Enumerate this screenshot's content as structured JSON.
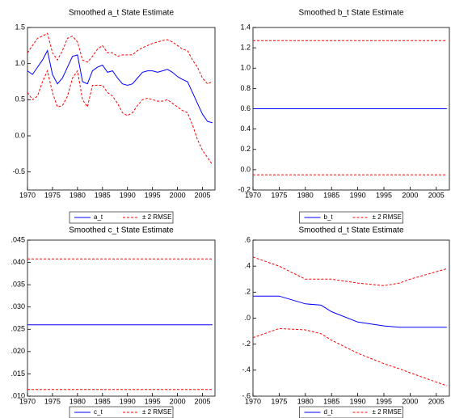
{
  "chart_data": [
    {
      "type": "line",
      "title": "Smoothed a_t State Estimate",
      "x": [
        1970,
        1971,
        1972,
        1973,
        1974,
        1975,
        1976,
        1977,
        1978,
        1979,
        1980,
        1981,
        1982,
        1983,
        1984,
        1985,
        1986,
        1987,
        1988,
        1989,
        1990,
        1991,
        1992,
        1993,
        1994,
        1995,
        1996,
        1997,
        1998,
        1999,
        2000,
        2001,
        2002,
        2003,
        2004,
        2005,
        2006,
        2007
      ],
      "series": [
        {
          "name": "a_t",
          "color": "#0000ff",
          "dashed": false,
          "values": [
            0.9,
            0.85,
            0.95,
            1.05,
            1.18,
            0.85,
            0.72,
            0.8,
            0.95,
            1.1,
            1.12,
            0.75,
            0.72,
            0.9,
            0.95,
            0.98,
            0.88,
            0.9,
            0.8,
            0.72,
            0.7,
            0.72,
            0.8,
            0.88,
            0.9,
            0.9,
            0.88,
            0.9,
            0.92,
            0.88,
            0.82,
            0.78,
            0.75,
            0.6,
            0.45,
            0.3,
            0.2,
            0.18
          ]
        },
        {
          "name": "± 2 RMSE",
          "color": "#ff0000",
          "dashed": true,
          "values": [
            1.15,
            1.25,
            1.35,
            1.38,
            1.42,
            1.15,
            1.05,
            1.18,
            1.35,
            1.38,
            1.3,
            1.05,
            1.02,
            1.1,
            1.2,
            1.25,
            1.15,
            1.15,
            1.1,
            1.12,
            1.12,
            1.12,
            1.18,
            1.22,
            1.25,
            1.28,
            1.3,
            1.32,
            1.33,
            1.3,
            1.25,
            1.2,
            1.18,
            1.05,
            0.95,
            0.8,
            0.72,
            0.75
          ]
        },
        {
          "color": "#ff0000",
          "dashed": true,
          "values": [
            0.6,
            0.5,
            0.55,
            0.75,
            0.9,
            0.6,
            0.4,
            0.42,
            0.55,
            0.8,
            0.9,
            0.5,
            0.4,
            0.7,
            0.7,
            0.7,
            0.6,
            0.55,
            0.45,
            0.32,
            0.28,
            0.32,
            0.42,
            0.5,
            0.52,
            0.5,
            0.48,
            0.48,
            0.5,
            0.45,
            0.4,
            0.35,
            0.32,
            0.15,
            -0.05,
            -0.2,
            -0.3,
            -0.4
          ]
        }
      ],
      "xlim": [
        1970,
        2007.5
      ],
      "xticks": [
        1970,
        1975,
        1980,
        1985,
        1990,
        1995,
        2000,
        2005
      ],
      "ylim": [
        -0.75,
        1.5
      ],
      "yticks": [
        {
          "value": -0.5,
          "label": "-0.5"
        },
        {
          "value": 0,
          "label": "0.0"
        },
        0.5,
        {
          "value": 1,
          "label": "1.0"
        },
        1.5
      ]
    },
    {
      "type": "line",
      "title": "Smoothed b_t State Estimate",
      "x": [
        1970,
        2007
      ],
      "series": [
        {
          "name": "b_t",
          "color": "#0000ff",
          "dashed": false,
          "values": [
            0.6,
            0.6
          ]
        },
        {
          "name": "± 2 RMSE",
          "color": "#ff0000",
          "dashed": true,
          "values": [
            1.27,
            1.27
          ]
        },
        {
          "color": "#ff0000",
          "dashed": true,
          "values": [
            -0.05,
            -0.05
          ]
        }
      ],
      "xlim": [
        1970,
        2007.5
      ],
      "xticks": [
        1970,
        1975,
        1980,
        1985,
        1990,
        1995,
        2000,
        2005
      ],
      "ylim": [
        -0.2,
        1.4
      ],
      "yticks": [
        -0.2,
        {
          "value": 0,
          "label": "0.0"
        },
        0.2,
        0.4,
        0.6,
        0.8,
        {
          "value": 1,
          "label": "1.0"
        },
        1.2,
        1.4
      ]
    },
    {
      "type": "line",
      "title": "Smoothed c_t State Estimate",
      "x": [
        1970,
        2007
      ],
      "series": [
        {
          "name": "c_t",
          "color": "#0000ff",
          "dashed": false,
          "values": [
            0.026,
            0.026
          ]
        },
        {
          "name": "± 2 RMSE",
          "color": "#ff0000",
          "dashed": true,
          "values": [
            0.0408,
            0.0408
          ]
        },
        {
          "color": "#ff0000",
          "dashed": true,
          "values": [
            0.0115,
            0.0115
          ]
        }
      ],
      "xlim": [
        1970,
        2007.5
      ],
      "xticks": [
        1970,
        1975,
        1980,
        1985,
        1990,
        1995,
        2000,
        2005
      ],
      "ylim": [
        0.01,
        0.045
      ],
      "yticks": [
        {
          "value": 0.01,
          "label": ".010"
        },
        {
          "value": 0.015,
          "label": ".015"
        },
        {
          "value": 0.02,
          "label": ".020"
        },
        {
          "value": 0.025,
          "label": ".025"
        },
        {
          "value": 0.03,
          "label": ".030"
        },
        {
          "value": 0.035,
          "label": ".035"
        },
        {
          "value": 0.04,
          "label": ".040"
        },
        {
          "value": 0.045,
          "label": ".045"
        }
      ]
    },
    {
      "type": "line",
      "title": "Smoothed d_t State Estimate",
      "x": [
        1970,
        1975,
        1980,
        1983,
        1985,
        1990,
        1995,
        1998,
        2000,
        2007
      ],
      "series": [
        {
          "name": "d_t",
          "color": "#0000ff",
          "dashed": false,
          "values": [
            0.17,
            0.17,
            0.11,
            0.1,
            0.05,
            -0.03,
            -0.06,
            -0.07,
            -0.07,
            -0.07
          ]
        },
        {
          "name": "± 2 RMSE",
          "color": "#ff0000",
          "dashed": true,
          "values": [
            0.47,
            0.4,
            0.3,
            0.3,
            0.3,
            0.27,
            0.25,
            0.27,
            0.3,
            0.38
          ]
        },
        {
          "color": "#ff0000",
          "dashed": true,
          "values": [
            -0.15,
            -0.08,
            -0.09,
            -0.12,
            -0.17,
            -0.27,
            -0.35,
            -0.39,
            -0.42,
            -0.52
          ]
        }
      ],
      "xlim": [
        1970,
        2007.5
      ],
      "xticks": [
        1970,
        1975,
        1980,
        1985,
        1990,
        1995,
        2000,
        2005
      ],
      "ylim": [
        -0.6,
        0.6
      ],
      "yticks": [
        {
          "value": -0.6,
          "label": "-.6"
        },
        {
          "value": -0.4,
          "label": "-.4"
        },
        {
          "value": -0.2,
          "label": "-.2"
        },
        {
          "value": 0,
          "label": ".0"
        },
        {
          "value": 0.2,
          "label": ".2"
        },
        {
          "value": 0.4,
          "label": ".4"
        },
        {
          "value": 0.6,
          "label": ".6"
        }
      ]
    }
  ]
}
